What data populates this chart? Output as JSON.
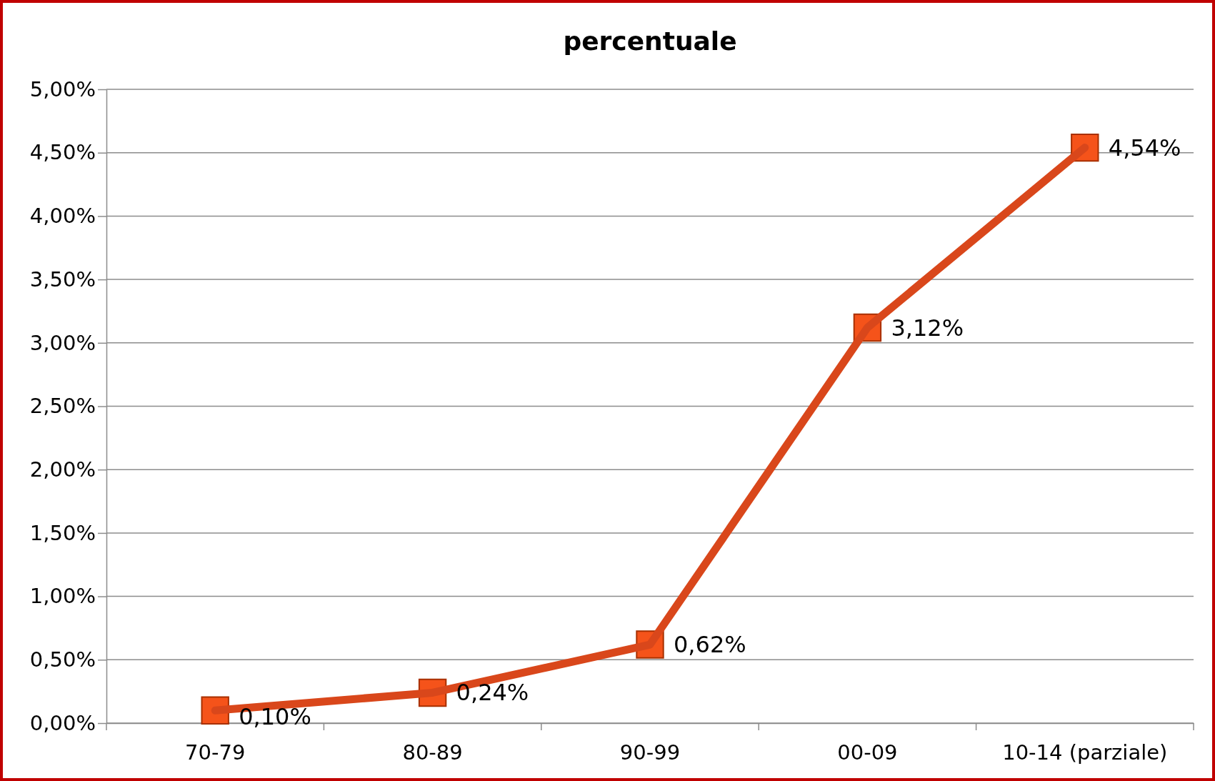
{
  "chart_data": {
    "type": "line",
    "title": "percentuale",
    "categories": [
      "70-79",
      "80-89",
      "90-99",
      "00-09",
      "10-14 (parziale)"
    ],
    "series": [
      {
        "color": "#d9471b",
        "values": [
          0.1,
          0.24,
          0.62,
          3.12,
          4.54
        ],
        "value_labels": [
          "0,10%",
          "0,24%",
          "0,62%",
          "3,12%",
          "4,54%"
        ]
      }
    ],
    "ylim": [
      0,
      5
    ],
    "yticks": [
      {
        "value": 0,
        "label": "0,00%"
      },
      {
        "value": 0.5,
        "label": "0,50%"
      },
      {
        "value": 1,
        "label": "1,00%"
      },
      {
        "value": 1.5,
        "label": "1,50%"
      },
      {
        "value": 2,
        "label": "2,00%"
      },
      {
        "value": 2.5,
        "label": "2,50%"
      },
      {
        "value": 3,
        "label": "3,00%"
      },
      {
        "value": 3.5,
        "label": "3,50%"
      },
      {
        "value": 4,
        "label": "4,00%"
      },
      {
        "value": 4.5,
        "label": "4,50%"
      },
      {
        "value": 5,
        "label": "5,00%"
      }
    ],
    "grid": "y",
    "marker": "square",
    "line_style": "solid"
  }
}
